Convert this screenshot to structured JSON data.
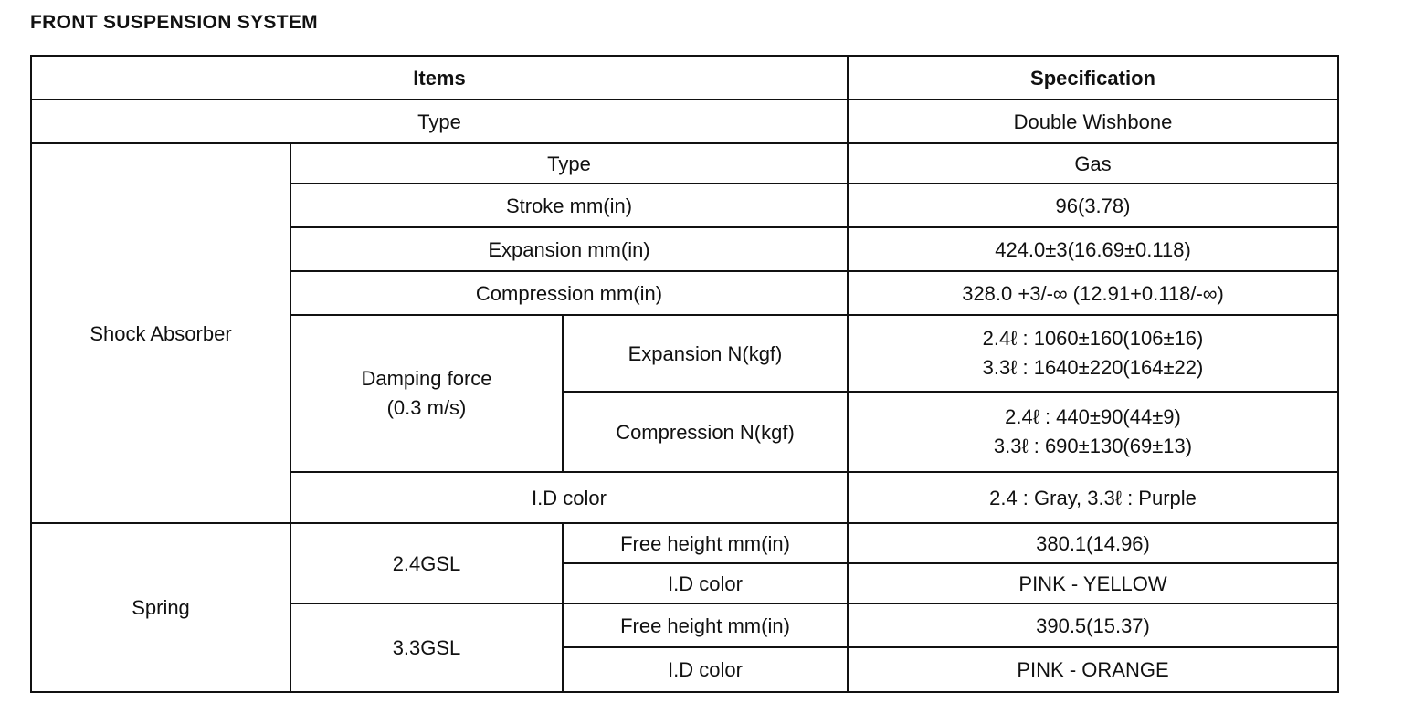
{
  "title": "FRONT SUSPENSION SYSTEM",
  "header": {
    "items": "Items",
    "specification": "Specification"
  },
  "rows": {
    "type": {
      "label": "Type",
      "value": "Double Wishbone"
    },
    "shock_absorber": {
      "label": "Shock Absorber",
      "type": {
        "label": "Type",
        "value": "Gas"
      },
      "stroke": {
        "label": "Stroke mm(in)",
        "value": "96(3.78)"
      },
      "expansion": {
        "label": "Expansion mm(in)",
        "value": "424.0±3(16.69±0.118)"
      },
      "compression": {
        "label": "Compression mm(in)",
        "value": "328.0 +3/-∞ (12.91+0.118/-∞)"
      },
      "damping_force": {
        "label": "Damping force",
        "sublabel": "(0.3 m/s)",
        "expansion": {
          "label": "Expansion N(kgf)",
          "values": [
            "2.4ℓ : 1060±160(106±16)",
            "3.3ℓ : 1640±220(164±22)"
          ]
        },
        "compression": {
          "label": "Compression N(kgf)",
          "values": [
            "2.4ℓ : 440±90(44±9)",
            "3.3ℓ : 690±130(69±13)"
          ]
        }
      },
      "id_color": {
        "label": "I.D color",
        "value": "2.4 : Gray, 3.3ℓ : Purple"
      }
    },
    "spring": {
      "label": "Spring",
      "gsl24": {
        "label": "2.4GSL",
        "free_height": {
          "label": "Free height mm(in)",
          "value": "380.1(14.96)"
        },
        "id_color": {
          "label": "I.D color",
          "value": "PINK - YELLOW"
        }
      },
      "gsl33": {
        "label": "3.3GSL",
        "free_height": {
          "label": "Free height mm(in)",
          "value": "390.5(15.37)"
        },
        "id_color": {
          "label": "I.D color",
          "value": "PINK - ORANGE"
        }
      }
    }
  }
}
